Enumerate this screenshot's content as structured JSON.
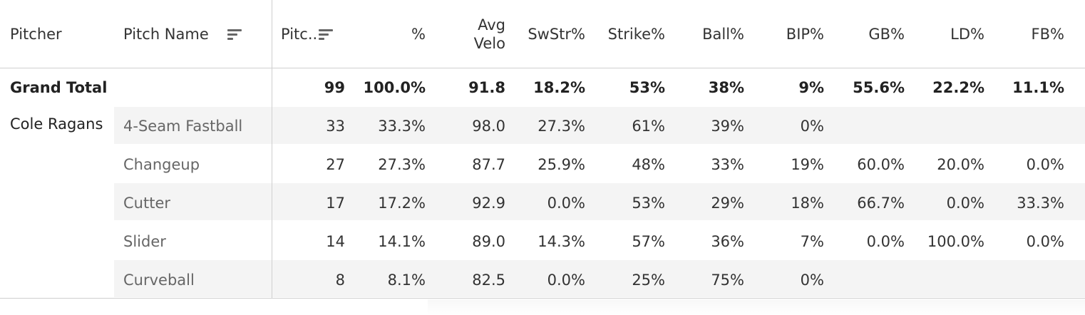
{
  "headers": {
    "pitcher": "Pitcher",
    "pitch_name": "Pitch Name",
    "pitches": "Pitc..",
    "pct": "%",
    "avg_velo_line1": "Avg",
    "avg_velo_line2": "Velo",
    "swstr": "SwStr%",
    "strike": "Strike%",
    "ball": "Ball%",
    "bip": "BIP%",
    "gb": "GB%",
    "ld": "LD%",
    "fb": "FB%"
  },
  "sort_icons": [
    "sort-descending-icon",
    "sort-descending-icon"
  ],
  "grand_total": {
    "label": "Grand Total",
    "pitches": "99",
    "pct": "100.0%",
    "avg_velo": "91.8",
    "swstr": "18.2%",
    "strike": "53%",
    "ball": "38%",
    "bip": "9%",
    "gb": "55.6%",
    "ld": "22.2%",
    "fb": "11.1%"
  },
  "pitcher_name": "Cole Ragans",
  "rows": [
    {
      "pitch": "4-Seam Fastball",
      "pitches": "33",
      "pct": "33.3%",
      "avg_velo": "98.0",
      "swstr": "27.3%",
      "strike": "61%",
      "ball": "39%",
      "bip": "0%",
      "gb": "",
      "ld": "",
      "fb": ""
    },
    {
      "pitch": "Changeup",
      "pitches": "27",
      "pct": "27.3%",
      "avg_velo": "87.7",
      "swstr": "25.9%",
      "strike": "48%",
      "ball": "33%",
      "bip": "19%",
      "gb": "60.0%",
      "ld": "20.0%",
      "fb": "0.0%"
    },
    {
      "pitch": "Cutter",
      "pitches": "17",
      "pct": "17.2%",
      "avg_velo": "92.9",
      "swstr": "0.0%",
      "strike": "53%",
      "ball": "29%",
      "bip": "18%",
      "gb": "66.7%",
      "ld": "0.0%",
      "fb": "33.3%"
    },
    {
      "pitch": "Slider",
      "pitches": "14",
      "pct": "14.1%",
      "avg_velo": "89.0",
      "swstr": "14.3%",
      "strike": "57%",
      "ball": "36%",
      "bip": "7%",
      "gb": "0.0%",
      "ld": "100.0%",
      "fb": "0.0%"
    },
    {
      "pitch": "Curveball",
      "pitches": "8",
      "pct": "8.1%",
      "avg_velo": "82.5",
      "swstr": "0.0%",
      "strike": "25%",
      "ball": "75%",
      "bip": "0%",
      "gb": "",
      "ld": "",
      "fb": ""
    }
  ]
}
